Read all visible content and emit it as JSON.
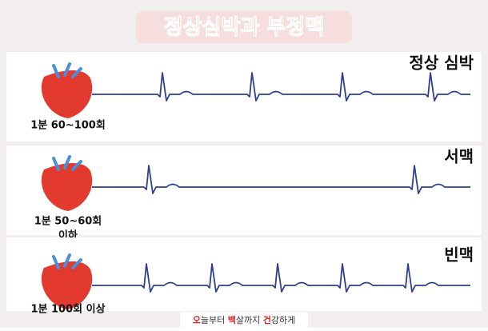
{
  "title": "정상심박과 부정맥",
  "panels": [
    {
      "label": "정상 심박",
      "rate_lines": [
        "1분 60~100회"
      ]
    },
    {
      "label": "서맥",
      "rate_lines": [
        "1분 50~60회",
        "이하"
      ]
    },
    {
      "label": "빈맥",
      "rate_lines": [
        "1분 100회 이상"
      ]
    }
  ],
  "footer": [
    "오",
    "늘부터 ",
    "백",
    "살까지 ",
    "건",
    "강하게"
  ]
}
